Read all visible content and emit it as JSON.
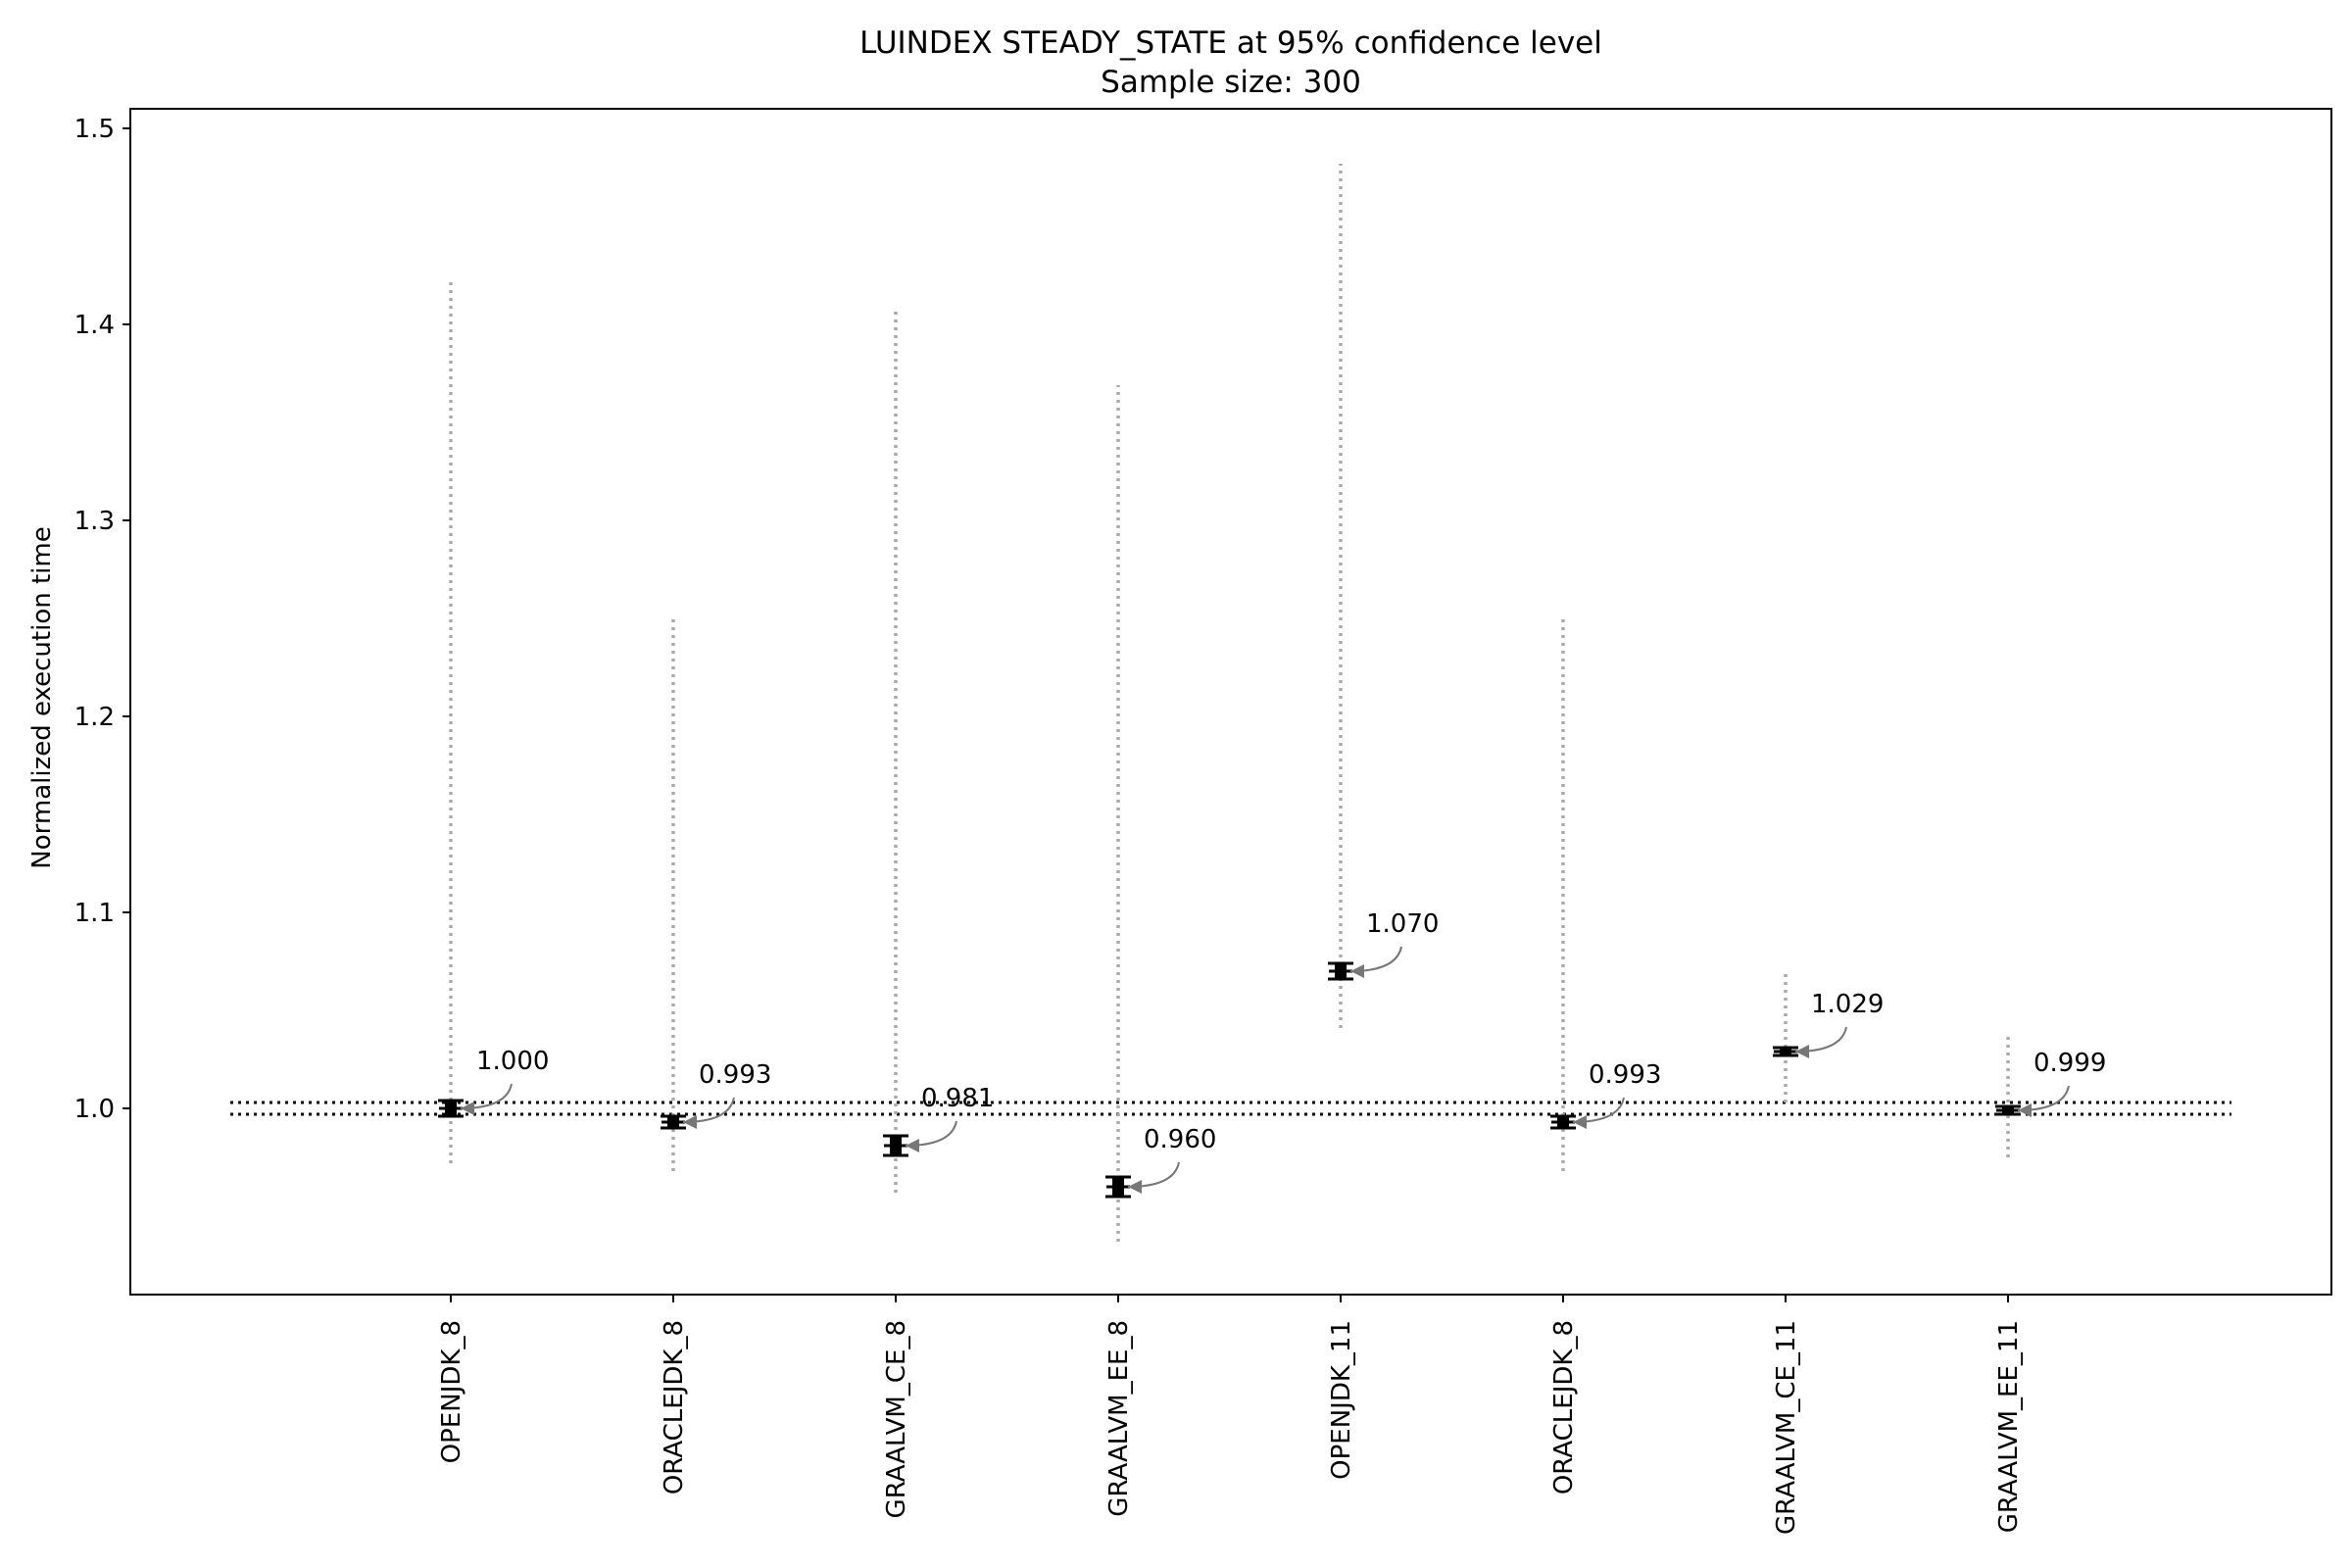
{
  "chart_data": {
    "type": "errorbar",
    "title": "LUINDEX STEADY_STATE at 95% confidence level",
    "subtitle": "Sample size: 300",
    "xlabel": "",
    "ylabel": "Normalized execution time",
    "ylim": [
      0.905,
      1.51
    ],
    "yticks": [
      1.0,
      1.1,
      1.2,
      1.3,
      1.4,
      1.5
    ],
    "ytick_labels": [
      "1.0",
      "1.1",
      "1.2",
      "1.3",
      "1.4",
      "1.5"
    ],
    "categories": [
      "OPENJDK_8",
      "ORACLEJDK_8",
      "GRAALVM_CE_8",
      "GRAALVM_EE_8",
      "OPENJDK_11",
      "ORACLEJDK_8",
      "GRAALVM_CE_11",
      "GRAALVM_EE_11"
    ],
    "means": [
      1.0,
      0.993,
      0.981,
      0.96,
      1.07,
      0.993,
      1.029,
      0.999
    ],
    "mean_labels": [
      "1.000",
      "0.993",
      "0.981",
      "0.960",
      "1.070",
      "0.993",
      "1.029",
      "0.999"
    ],
    "ci_low": [
      0.996,
      0.99,
      0.976,
      0.955,
      1.066,
      0.99,
      1.027,
      0.997
    ],
    "ci_high": [
      1.004,
      0.996,
      0.986,
      0.965,
      1.074,
      0.996,
      1.031,
      1.001
    ],
    "range_min": [
      0.972,
      0.968,
      0.957,
      0.932,
      1.041,
      0.968,
      1.003,
      0.975
    ],
    "range_max": [
      1.424,
      1.252,
      1.408,
      1.369,
      1.482,
      1.252,
      1.07,
      1.038
    ],
    "reference_band": [
      0.997,
      1.003
    ],
    "grid": false,
    "colors": {
      "mean_marker": "#000000",
      "range_line": "#aaaaaa",
      "arrow": "#777777",
      "reference_line": "#000000"
    }
  }
}
